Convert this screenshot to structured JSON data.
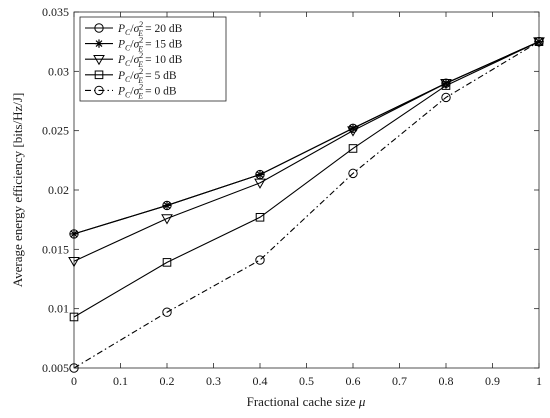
{
  "chart_data": {
    "type": "line",
    "xlabel": "Fractional cache size μ",
    "ylabel": "Average energy efficiency [bits/Hz/J]",
    "xlim": [
      0,
      1
    ],
    "ylim": [
      0.005,
      0.035
    ],
    "xticks": [
      0,
      0.1,
      0.2,
      0.3,
      0.4,
      0.5,
      0.6,
      0.7,
      0.8,
      0.9,
      1
    ],
    "xtick_labels": [
      "0",
      "0.1",
      "0.2",
      "0.3",
      "0.4",
      "0.5",
      "0.6",
      "0.7",
      "0.8",
      "0.9",
      "1"
    ],
    "yticks": [
      0.005,
      0.01,
      0.015,
      0.02,
      0.025,
      0.03,
      0.035
    ],
    "ytick_labels": [
      "0.005",
      "0.01",
      "0.015",
      "0.02",
      "0.025",
      "0.03",
      "0.035"
    ],
    "grid": false,
    "legend_position": "top-left",
    "x": [
      0,
      0.2,
      0.4,
      0.6,
      0.8,
      1
    ],
    "series": [
      {
        "name": "P_C/σ_E^2 = 20 dB",
        "legend_main": "P",
        "legend_sub": "C",
        "legend_sup": "2",
        "legend_after": "= 20 dB",
        "marker": "circle",
        "line": "solid",
        "color": "#000000",
        "values": [
          0.0163,
          0.0187,
          0.0213,
          0.0252,
          0.029,
          0.0325
        ]
      },
      {
        "name": "P_C/σ_E^2 = 15 dB",
        "legend_main": "P",
        "legend_sub": "C",
        "legend_sup": "2",
        "legend_after": "= 15 dB",
        "marker": "star",
        "line": "solid",
        "color": "#000000",
        "values": [
          0.0163,
          0.0187,
          0.0213,
          0.0252,
          0.029,
          0.0325
        ]
      },
      {
        "name": "P_C/σ_E^2 = 10 dB",
        "legend_main": "P",
        "legend_sub": "C",
        "legend_sup": "2",
        "legend_after": "= 10 dB",
        "marker": "triangle-down",
        "line": "solid",
        "color": "#000000",
        "values": [
          0.014,
          0.0176,
          0.0206,
          0.025,
          0.029,
          0.0325
        ]
      },
      {
        "name": "P_C/σ_E^2 = 5 dB",
        "legend_main": "P",
        "legend_sub": "C",
        "legend_sup": "2",
        "legend_after": "= 5 dB",
        "marker": "square",
        "line": "solid",
        "color": "#000000",
        "values": [
          0.0093,
          0.0139,
          0.0177,
          0.0235,
          0.0288,
          0.0325
        ]
      },
      {
        "name": "P_C/σ_E^2 = 0 dB",
        "legend_main": "P",
        "legend_sub": "C",
        "legend_sup": "2",
        "legend_after": "= 0 dB",
        "marker": "circle",
        "line": "dashdot",
        "color": "#000000",
        "values": [
          0.005,
          0.0097,
          0.0141,
          0.0214,
          0.0278,
          0.0325
        ]
      }
    ]
  }
}
